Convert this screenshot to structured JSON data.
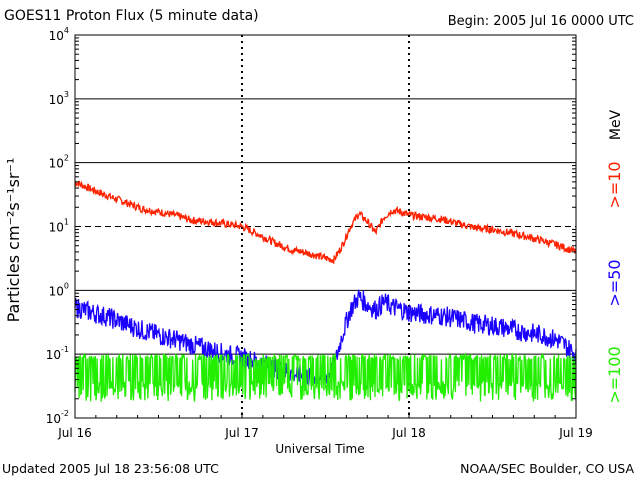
{
  "header": {
    "title": "GOES11 Proton Flux (5 minute data)",
    "begin": "Begin: 2005 Jul 16 0000 UTC"
  },
  "footer": {
    "updated": "Updated 2005 Jul 18 23:56:08 UTC",
    "credit": "NOAA/SEC Boulder, CO USA"
  },
  "colors": {
    "ge10": "#ff2200",
    "ge50": "#1a00ff",
    "ge100": "#22ee00"
  },
  "chart_data": {
    "type": "line",
    "title": "GOES11 Proton Flux (5 minute data)",
    "xlabel": "Universal Time",
    "ylabel": "Particles cm⁻²s⁻¹sr⁻¹",
    "yscale": "log",
    "ylim": [
      0.01,
      10000
    ],
    "xlim": [
      "2005-07-16 00:00",
      "2005-07-19 00:00"
    ],
    "x_ticks": [
      "Jul 16",
      "Jul 17",
      "Jul 18",
      "Jul 19"
    ],
    "y_ticks": [
      {
        "base": "10",
        "exp": "-2"
      },
      {
        "base": "10",
        "exp": "-1"
      },
      {
        "base": "10",
        "exp": "0"
      },
      {
        "base": "10",
        "exp": "1"
      },
      {
        "base": "10",
        "exp": "2"
      },
      {
        "base": "10",
        "exp": "3"
      },
      {
        "base": "10",
        "exp": "4"
      }
    ],
    "unit_label": "MeV",
    "grid": "horizontal at each decade",
    "series": [
      {
        "name": ">=10",
        "color": "#ff2200",
        "x": [
          0,
          0.1,
          0.2,
          0.3,
          0.4,
          0.5,
          0.6,
          0.7,
          0.8,
          0.9,
          1.0,
          1.1,
          1.2,
          1.3,
          1.4,
          1.5,
          1.55,
          1.6,
          1.65,
          1.7,
          1.75,
          1.8,
          1.85,
          1.9,
          1.95,
          2.0,
          2.1,
          2.2,
          2.3,
          2.4,
          2.5,
          2.6,
          2.7,
          2.8,
          2.9,
          3.0
        ],
        "y": [
          50,
          38,
          30,
          24,
          19,
          17,
          15,
          12.5,
          12,
          11,
          10,
          7.5,
          5.5,
          4.3,
          3.8,
          3.2,
          3.0,
          5.0,
          10,
          16,
          12,
          8,
          14,
          18,
          17,
          15,
          14,
          13,
          11,
          9.5,
          9,
          8,
          7,
          6,
          5,
          4
        ]
      },
      {
        "name": ">=50",
        "color": "#1a00ff",
        "x": [
          0,
          0.1,
          0.2,
          0.3,
          0.4,
          0.5,
          0.6,
          0.7,
          0.8,
          0.9,
          1.0,
          1.1,
          1.2,
          1.3,
          1.4,
          1.5,
          1.55,
          1.6,
          1.65,
          1.7,
          1.75,
          1.8,
          1.85,
          1.9,
          1.95,
          2.0,
          2.1,
          2.2,
          2.3,
          2.4,
          2.5,
          2.6,
          2.7,
          2.8,
          2.9,
          3.0
        ],
        "y": [
          0.55,
          0.45,
          0.38,
          0.3,
          0.24,
          0.2,
          0.17,
          0.14,
          0.12,
          0.1,
          0.09,
          0.075,
          0.06,
          0.05,
          0.045,
          0.045,
          0.06,
          0.2,
          0.5,
          0.8,
          0.6,
          0.5,
          0.65,
          0.55,
          0.5,
          0.45,
          0.42,
          0.4,
          0.35,
          0.3,
          0.28,
          0.25,
          0.22,
          0.2,
          0.16,
          0.1
        ]
      },
      {
        "name": ">=100",
        "color": "#22ee00",
        "x": [
          0,
          0.25,
          0.5,
          0.75,
          1.0,
          1.25,
          1.5,
          1.75,
          2.0,
          2.25,
          2.5,
          2.75,
          3.0
        ],
        "y": [
          0.03,
          0.028,
          0.03,
          0.025,
          0.03,
          0.028,
          0.025,
          0.03,
          0.03,
          0.03,
          0.03,
          0.028,
          0.025
        ]
      }
    ]
  }
}
